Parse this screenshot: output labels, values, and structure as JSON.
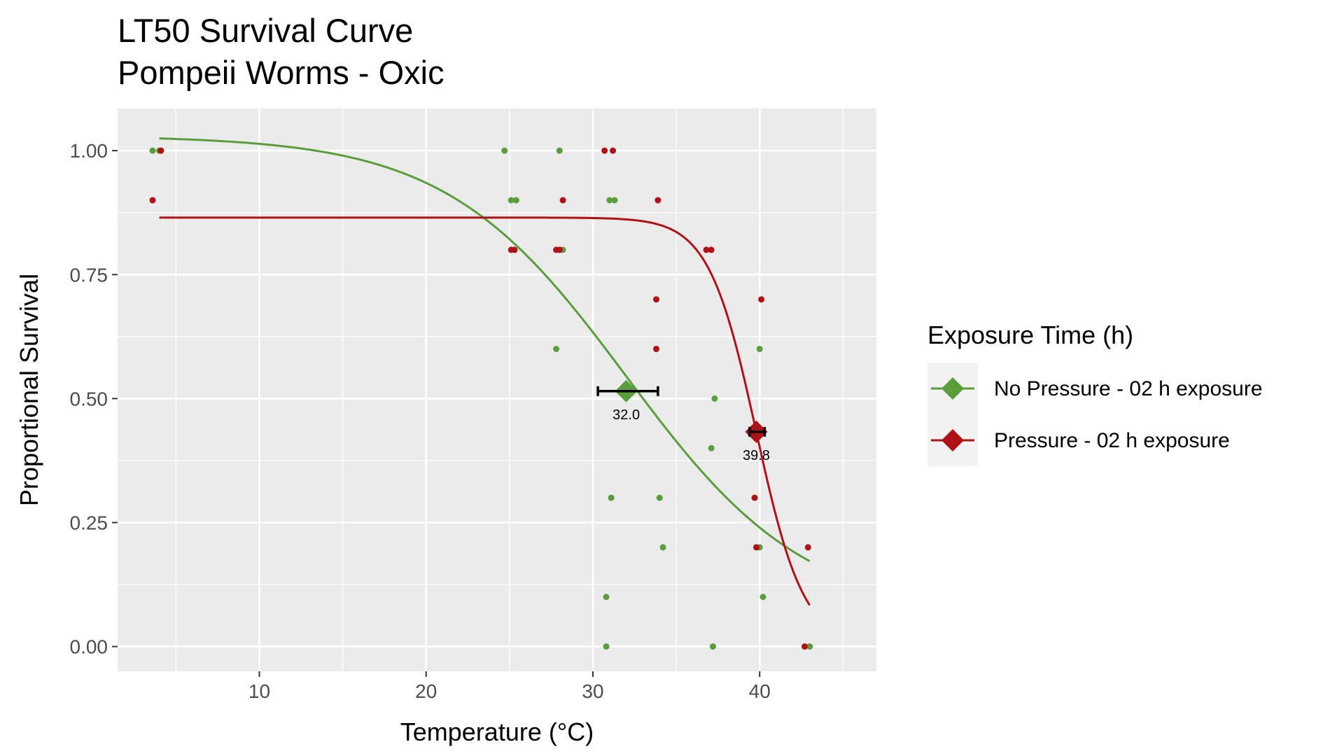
{
  "chart_data": {
    "type": "scatter",
    "title": "LT50 Survival Curve",
    "subtitle": "Pompeii Worms - Oxic",
    "xlabel": "Temperature (°C)",
    "ylabel": "Proportional Survival",
    "xlim": [
      1.5,
      47.0
    ],
    "ylim": [
      -0.05,
      1.085
    ],
    "x_ticks": [
      10,
      20,
      30,
      40
    ],
    "x_tick_labels": [
      "10",
      "20",
      "30",
      "40"
    ],
    "y_ticks": [
      0,
      0.25,
      0.5,
      0.75,
      1.0
    ],
    "y_tick_labels": [
      "0.00",
      "0.25",
      "0.50",
      "0.75",
      "1.00"
    ],
    "grid": true,
    "panel_background": "#ebebeb",
    "legend": {
      "title": "Exposure Time (h)",
      "placement": "right"
    },
    "series": [
      {
        "name": "No Pressure - 02 h exposure",
        "color": "#5a9e3c",
        "points": [
          [
            3.6,
            1.0
          ],
          [
            4.0,
            1.0
          ],
          [
            24.7,
            1.0
          ],
          [
            28.0,
            1.0
          ],
          [
            25.1,
            0.9
          ],
          [
            25.4,
            0.9
          ],
          [
            31.0,
            0.9
          ],
          [
            31.3,
            0.9
          ],
          [
            28.2,
            0.8
          ],
          [
            27.8,
            0.6
          ],
          [
            40.0,
            0.6
          ],
          [
            37.3,
            0.5
          ],
          [
            37.1,
            0.4
          ],
          [
            31.1,
            0.3
          ],
          [
            34.0,
            0.3
          ],
          [
            34.2,
            0.2
          ],
          [
            40.0,
            0.2
          ],
          [
            30.8,
            0.1
          ],
          [
            40.2,
            0.1
          ],
          [
            30.8,
            0.0
          ],
          [
            37.2,
            0.0
          ],
          [
            43.0,
            0.0
          ]
        ],
        "curve": {
          "top": 1.03,
          "bottom": 0.06,
          "lt50": 32.0,
          "slope": 0.185,
          "x_range": [
            4.0,
            43.0
          ]
        },
        "lt50": {
          "x": 32.0,
          "y": 0.515,
          "ci": [
            30.3,
            33.9
          ],
          "label": "32.0"
        }
      },
      {
        "name": "Pressure - 02 h exposure",
        "color": "#b01116",
        "points": [
          [
            3.6,
            0.9
          ],
          [
            4.1,
            1.0
          ],
          [
            30.7,
            1.0
          ],
          [
            31.2,
            1.0
          ],
          [
            28.2,
            0.9
          ],
          [
            33.9,
            0.9
          ],
          [
            25.1,
            0.8
          ],
          [
            25.3,
            0.8
          ],
          [
            27.8,
            0.8
          ],
          [
            28.0,
            0.8
          ],
          [
            36.8,
            0.8
          ],
          [
            37.1,
            0.8
          ],
          [
            33.8,
            0.7
          ],
          [
            40.1,
            0.7
          ],
          [
            33.8,
            0.6
          ],
          [
            39.7,
            0.3
          ],
          [
            39.8,
            0.2
          ],
          [
            42.9,
            0.2
          ],
          [
            42.7,
            0.0
          ]
        ],
        "curve": {
          "top": 0.865,
          "bottom": 0.0,
          "lt50": 39.8,
          "slope": 0.7,
          "x_range": [
            4.0,
            43.0
          ]
        },
        "lt50": {
          "x": 39.8,
          "y": 0.433,
          "ci": [
            39.4,
            40.3
          ],
          "label": "39.8"
        }
      }
    ]
  }
}
